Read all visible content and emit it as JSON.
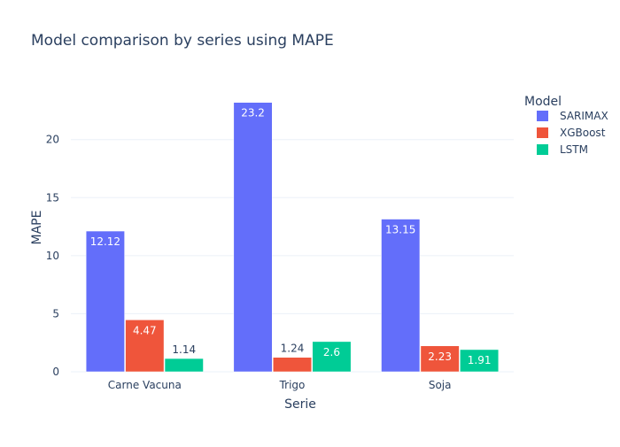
{
  "chart_data": {
    "type": "bar",
    "title": "Model comparison by series using MAPE",
    "xlabel": "Serie",
    "ylabel": "MAPE",
    "categories": [
      "Carne Vacuna",
      "Trigo",
      "Soja"
    ],
    "ylim": [
      0,
      24.4
    ],
    "yticks": [
      0,
      5,
      10,
      15,
      20
    ],
    "grid": true,
    "legend": {
      "title": "Model",
      "position": "top-right"
    },
    "series": [
      {
        "name": "SARIMAX",
        "color": "#636efa",
        "values": [
          12.12,
          23.2,
          13.15
        ],
        "labels": [
          "12.12",
          "23.2",
          "13.15"
        ]
      },
      {
        "name": "XGBoost",
        "color": "#ef553b",
        "values": [
          4.47,
          1.24,
          2.23
        ],
        "labels": [
          "4.47",
          "1.24",
          "2.23"
        ]
      },
      {
        "name": "LSTM",
        "color": "#00cc96",
        "values": [
          1.14,
          2.6,
          1.91
        ],
        "labels": [
          "1.14",
          "2.6",
          "1.91"
        ]
      }
    ]
  }
}
